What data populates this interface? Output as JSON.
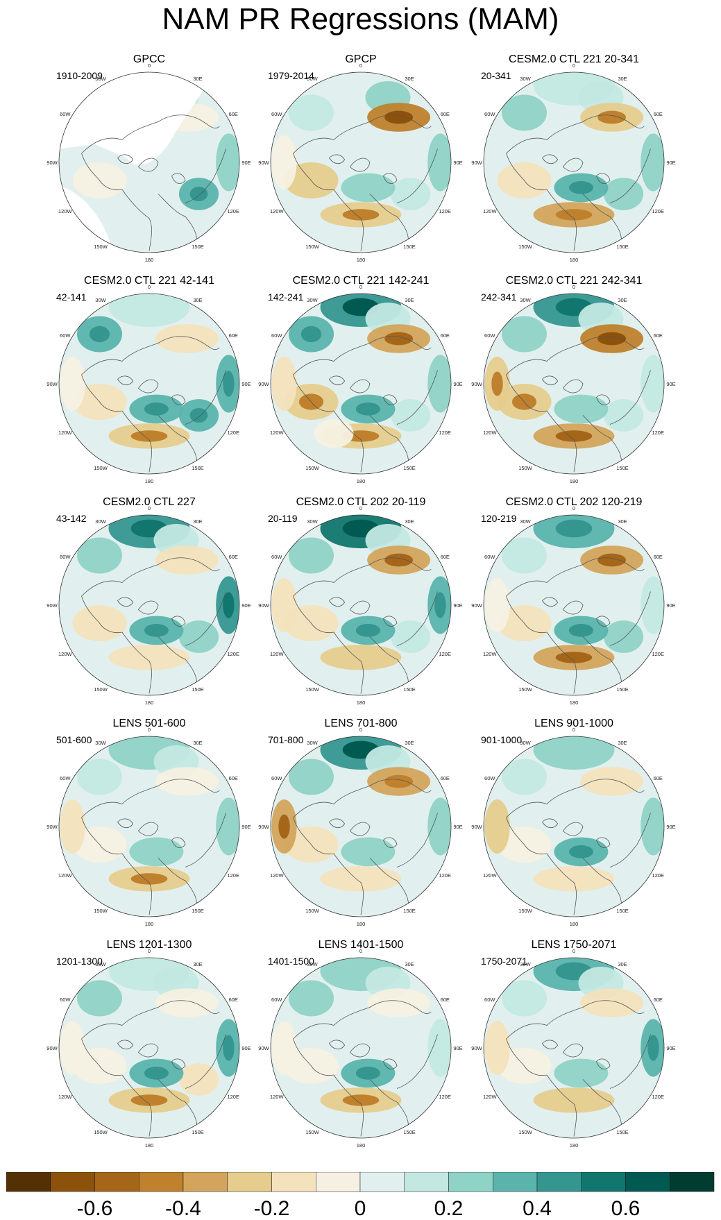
{
  "title": "NAM PR Regressions (MAM)",
  "panels": [
    {
      "title": "GPCC",
      "range": "1910-2009",
      "masked": true,
      "v": [
        0.05,
        0.1,
        -0.1,
        0.2,
        0.35,
        0.0,
        -0.1,
        -0.05,
        -0.05,
        0.05,
        0.0,
        0.1
      ]
    },
    {
      "title": "GPCP",
      "range": "1979-2014",
      "masked": false,
      "v": [
        0.05,
        0.25,
        -0.45,
        0.2,
        0.1,
        0.05,
        -0.25,
        -0.3,
        0.25,
        -0.1,
        -0.05,
        0.1
      ]
    },
    {
      "title": "CESM2.0 CTL 221 20-341",
      "range": "20-341",
      "masked": false,
      "v": [
        0.1,
        0.1,
        -0.3,
        0.25,
        0.2,
        0.0,
        -0.2,
        -0.35,
        0.3,
        -0.05,
        0.0,
        0.2
      ]
    },
    {
      "title": "CESM2.0 CTL 221 42-141",
      "range": "42-141",
      "masked": false,
      "v": [
        0.15,
        0.05,
        -0.2,
        0.3,
        0.3,
        0.0,
        -0.15,
        -0.3,
        0.35,
        -0.1,
        0.0,
        0.3
      ]
    },
    {
      "title": "CESM2.0 CTL 221 142-241",
      "range": "142-241",
      "masked": false,
      "v": [
        0.45,
        0.15,
        -0.4,
        0.25,
        0.1,
        0.05,
        -0.3,
        -0.3,
        0.35,
        -0.15,
        -0.1,
        0.35
      ]
    },
    {
      "title": "CESM2.0 CTL 221 242-341",
      "range": "242-341",
      "masked": false,
      "v": [
        0.4,
        0.1,
        -0.45,
        0.15,
        0.15,
        0.0,
        -0.3,
        -0.4,
        0.25,
        -0.3,
        -0.05,
        0.25
      ]
    },
    {
      "title": "CESM2.0 CTL 227",
      "range": "43-142",
      "masked": false,
      "v": [
        0.4,
        0.1,
        -0.2,
        0.4,
        0.2,
        0.0,
        -0.15,
        -0.2,
        0.35,
        -0.05,
        0.0,
        0.2
      ]
    },
    {
      "title": "CESM2.0 CTL 202 20-119",
      "range": "20-119",
      "masked": false,
      "v": [
        0.5,
        0.15,
        -0.4,
        0.3,
        0.1,
        0.05,
        -0.2,
        -0.25,
        0.3,
        -0.2,
        -0.05,
        0.25
      ]
    },
    {
      "title": "CESM2.0 CTL 202 120-219",
      "range": "120-219",
      "masked": false,
      "v": [
        0.3,
        0.05,
        -0.4,
        0.15,
        0.2,
        0.0,
        -0.15,
        -0.4,
        0.3,
        -0.1,
        -0.05,
        0.15
      ]
    },
    {
      "title": "LENS 501-600",
      "range": "501-600",
      "masked": false,
      "v": [
        0.2,
        0.1,
        -0.1,
        0.2,
        0.05,
        0.0,
        -0.1,
        -0.3,
        0.2,
        -0.15,
        0.0,
        0.1
      ]
    },
    {
      "title": "LENS 701-800",
      "range": "701-800",
      "masked": false,
      "v": [
        0.45,
        0.1,
        -0.35,
        0.25,
        0.05,
        0.05,
        -0.2,
        -0.2,
        0.25,
        -0.4,
        -0.05,
        0.2
      ]
    },
    {
      "title": "LENS 901-1000",
      "range": "901-1000",
      "masked": false,
      "v": [
        0.2,
        0.05,
        -0.15,
        0.25,
        0.05,
        0.0,
        -0.1,
        -0.2,
        0.3,
        -0.25,
        0.0,
        0.15
      ]
    },
    {
      "title": "LENS 1201-1300",
      "range": "1201-1300",
      "masked": false,
      "v": [
        0.15,
        0.1,
        -0.1,
        0.35,
        -0.2,
        0.0,
        -0.1,
        -0.3,
        0.3,
        -0.1,
        0.0,
        0.25
      ]
    },
    {
      "title": "LENS 1401-1500",
      "range": "1401-1500",
      "masked": false,
      "v": [
        0.25,
        0.1,
        -0.1,
        0.1,
        0.05,
        0.05,
        -0.1,
        -0.3,
        0.35,
        -0.1,
        0.0,
        0.2
      ]
    },
    {
      "title": "LENS 1750-2071",
      "range": "1750-2071",
      "masked": false,
      "v": [
        0.35,
        0.1,
        -0.15,
        0.3,
        0.05,
        0.0,
        -0.1,
        -0.25,
        0.25,
        -0.15,
        0.0,
        0.15
      ]
    }
  ],
  "longitude_labels": [
    "180",
    "150E",
    "120E",
    "90E",
    "60E",
    "30E",
    "0",
    "30W",
    "60W",
    "90W",
    "120W",
    "150W"
  ],
  "longitude_angles_deg": [
    180,
    150,
    120,
    90,
    60,
    30,
    0,
    -30,
    -60,
    -90,
    -120,
    -150
  ],
  "colorbar": {
    "colors": [
      "#543005",
      "#8c510a",
      "#a6661a",
      "#bf812d",
      "#d3a45c",
      "#e6cc8d",
      "#f3e2bc",
      "#f5f0e1",
      "#e1f0ee",
      "#c3e8e2",
      "#8fd2c6",
      "#5ab4ac",
      "#359690",
      "#11766d",
      "#015a52",
      "#003c30"
    ],
    "boundaries": [
      -0.7,
      -0.6,
      -0.5,
      -0.4,
      -0.3,
      -0.2,
      -0.1,
      0,
      0.1,
      0.2,
      0.3,
      0.4,
      0.5,
      0.6,
      0.7
    ],
    "tick_labels": [
      "-0.6",
      "-0.4",
      "-0.2",
      "0",
      "0.2",
      "0.4",
      "0.6"
    ]
  }
}
